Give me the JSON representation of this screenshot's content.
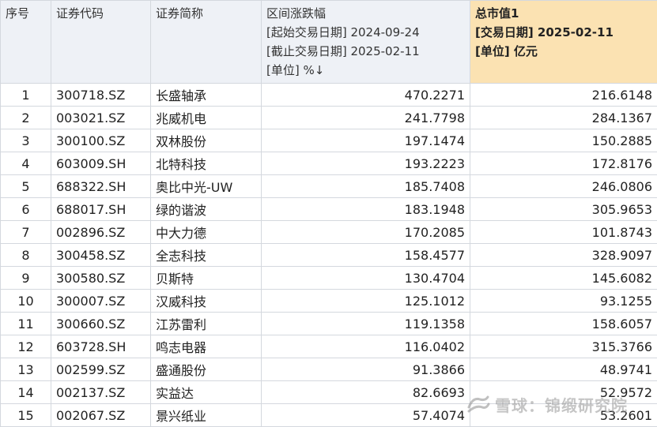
{
  "header": {
    "idx": "序号",
    "code": "证券代码",
    "name": "证券简称",
    "change_lines": [
      "区间涨跌幅",
      "[起始交易日期] 2024-09-24",
      "[截止交易日期] 2025-02-11",
      "[单位] %↓"
    ],
    "cap_lines": [
      "总市值1",
      "[交易日期] 2025-02-11",
      "[单位] 亿元"
    ]
  },
  "rows": [
    {
      "idx": "1",
      "code": "300718.SZ",
      "name": "长盛轴承",
      "change": "470.2271",
      "cap": "216.6148"
    },
    {
      "idx": "2",
      "code": "003021.SZ",
      "name": "兆威机电",
      "change": "241.7798",
      "cap": "284.1367"
    },
    {
      "idx": "3",
      "code": "300100.SZ",
      "name": "双林股份",
      "change": "197.1474",
      "cap": "150.2885"
    },
    {
      "idx": "4",
      "code": "603009.SH",
      "name": "北特科技",
      "change": "193.2223",
      "cap": "172.8176"
    },
    {
      "idx": "5",
      "code": "688322.SH",
      "name": "奥比中光-UW",
      "change": "185.7408",
      "cap": "246.0806"
    },
    {
      "idx": "6",
      "code": "688017.SH",
      "name": "绿的谐波",
      "change": "183.1948",
      "cap": "305.9653"
    },
    {
      "idx": "7",
      "code": "002896.SZ",
      "name": "中大力德",
      "change": "170.2085",
      "cap": "101.8743"
    },
    {
      "idx": "8",
      "code": "300458.SZ",
      "name": "全志科技",
      "change": "158.4577",
      "cap": "328.9097"
    },
    {
      "idx": "9",
      "code": "300580.SZ",
      "name": "贝斯特",
      "change": "130.4704",
      "cap": "145.6082"
    },
    {
      "idx": "10",
      "code": "300007.SZ",
      "name": "汉威科技",
      "change": "125.1012",
      "cap": "93.1255"
    },
    {
      "idx": "11",
      "code": "300660.SZ",
      "name": "江苏雷利",
      "change": "119.1358",
      "cap": "158.6057"
    },
    {
      "idx": "12",
      "code": "603728.SH",
      "name": "鸣志电器",
      "change": "116.0402",
      "cap": "315.3766"
    },
    {
      "idx": "13",
      "code": "002599.SZ",
      "name": "盛通股份",
      "change": "91.3866",
      "cap": "48.9741"
    },
    {
      "idx": "14",
      "code": "002137.SZ",
      "name": "实益达",
      "change": "82.6693",
      "cap": "52.9572"
    },
    {
      "idx": "15",
      "code": "002067.SZ",
      "name": "景兴纸业",
      "change": "57.4074",
      "cap": "53.2601"
    }
  ],
  "watermark": {
    "text": "雪球：锦缎研究院",
    "icon": "xueqiu-logo-icon"
  }
}
